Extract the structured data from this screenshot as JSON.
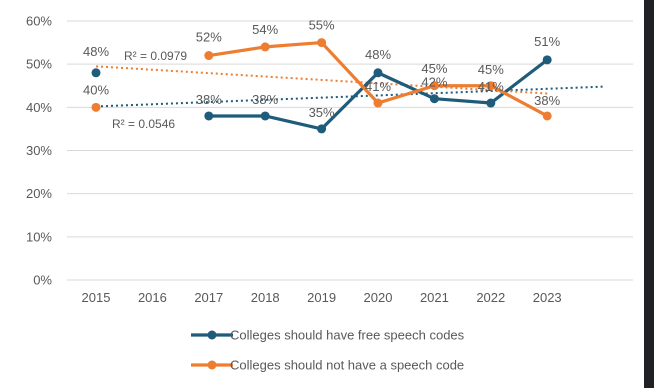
{
  "chart_data": {
    "type": "line",
    "title": "",
    "xlabel": "",
    "ylabel": "",
    "categories": [
      "2015",
      "2016",
      "2017",
      "2018",
      "2019",
      "2020",
      "2021",
      "2022",
      "2023"
    ],
    "ylim": [
      0,
      60
    ],
    "yticks": [
      "0%",
      "10%",
      "20%",
      "30%",
      "40%",
      "50%",
      "60%"
    ],
    "grid": true,
    "legend_position": "bottom",
    "series": [
      {
        "name": "Colleges should have free speech codes",
        "color": "#1f5b7a",
        "values": [
          48,
          null,
          38,
          38,
          35,
          48,
          42,
          41,
          51
        ],
        "labels": [
          "48%",
          "",
          "38%",
          "38%",
          "35%",
          "48%",
          "42%",
          "41%",
          "51%"
        ],
        "trendline": {
          "x": [
            "2015",
            "2024"
          ],
          "y": [
            40.2,
            44.8
          ],
          "r2_label": "R² = 0.0546"
        }
      },
      {
        "name": "Colleges should not have a speech code",
        "color": "#ed7d31",
        "values": [
          40,
          null,
          52,
          54,
          55,
          41,
          45,
          45,
          38
        ],
        "labels": [
          "40%",
          "",
          "52%",
          "54%",
          "55%",
          "41%",
          "45%",
          "45%",
          "38%"
        ],
        "trendline": {
          "x": [
            "2015",
            "2023"
          ],
          "y": [
            49.5,
            43.2
          ],
          "r2_label": "R² = 0.0979"
        }
      }
    ]
  }
}
